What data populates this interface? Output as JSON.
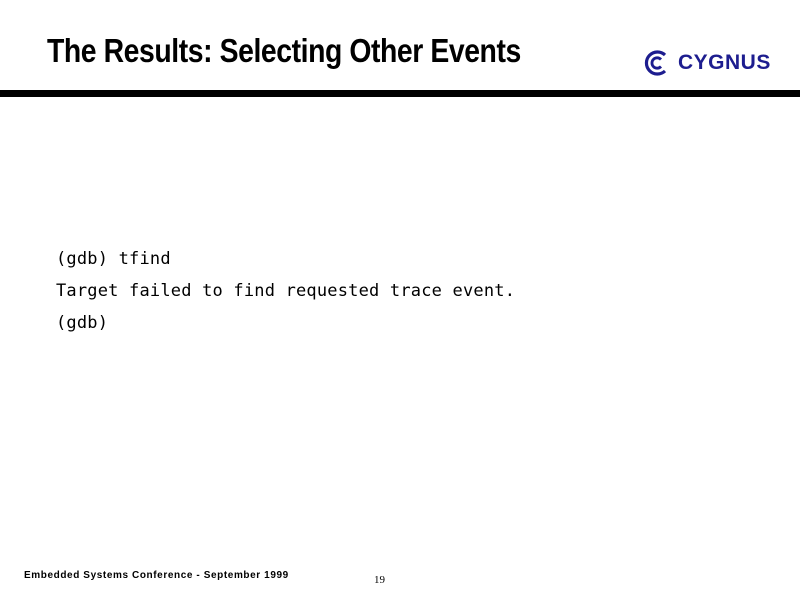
{
  "slide": {
    "title": "The Results: Selecting Other Events"
  },
  "logo": {
    "text": "CYGNUS",
    "icon": "cygnus-c-logo-icon",
    "color": "#1d1d8f"
  },
  "console": {
    "lines": [
      "(gdb) tfind",
      "Target failed to find requested trace event.",
      "(gdb)"
    ]
  },
  "footer": {
    "conference": "Embedded Systems Conference - September 1999",
    "page_number": "19"
  }
}
